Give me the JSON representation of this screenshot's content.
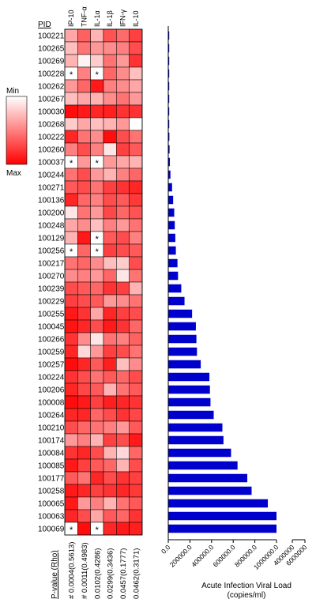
{
  "chart_data": [
    {
      "type": "heatmap",
      "row_header": "PID",
      "columns": [
        "IP-10",
        "TNF-α",
        "IL-1α",
        "IL-1β",
        "IFN-γ",
        "IL-10"
      ],
      "rows": [
        "100221",
        "100265",
        "100269",
        "100228",
        "100262",
        "100267",
        "100030",
        "100268",
        "100222",
        "100260",
        "100037",
        "100244",
        "100271",
        "100136",
        "100200",
        "100248",
        "100129",
        "100256",
        "100217",
        "100270",
        "100239",
        "100229",
        "100255",
        "100045",
        "100266",
        "100259",
        "100257",
        "100224",
        "100206",
        "100008",
        "100264",
        "100210",
        "100174",
        "100084",
        "100085",
        "100177",
        "100258",
        "100065",
        "100063",
        "100069"
      ],
      "values_0_1": [
        [
          0.35,
          0.62,
          0.3,
          0.68,
          0.58,
          0.75
        ],
        [
          0.25,
          0.55,
          0.4,
          0.45,
          0.5,
          0.7
        ],
        [
          0.3,
          0.05,
          0.2,
          0.55,
          0.4,
          0.8
        ],
        [
          0.0,
          0.5,
          0.0,
          0.6,
          0.45,
          0.25
        ],
        [
          0.4,
          0.6,
          0.9,
          0.5,
          0.45,
          0.35
        ],
        [
          0.25,
          0.35,
          0.3,
          0.45,
          0.55,
          0.4
        ],
        [
          0.95,
          0.9,
          0.85,
          0.88,
          0.8,
          0.8
        ],
        [
          0.2,
          0.35,
          0.25,
          0.3,
          0.4,
          0.0
        ],
        [
          0.85,
          0.55,
          0.45,
          0.95,
          0.7,
          0.55
        ],
        [
          0.5,
          0.7,
          0.5,
          0.1,
          0.75,
          0.65
        ],
        [
          0.0,
          0.4,
          0.0,
          0.4,
          0.35,
          0.3
        ],
        [
          0.55,
          0.7,
          0.4,
          0.3,
          0.5,
          0.6
        ],
        [
          0.65,
          0.7,
          0.55,
          0.75,
          0.8,
          0.85
        ],
        [
          0.85,
          0.6,
          0.5,
          0.7,
          0.65,
          0.78
        ],
        [
          0.1,
          0.55,
          0.4,
          0.72,
          0.6,
          0.68
        ],
        [
          0.35,
          0.45,
          0.25,
          0.5,
          0.4,
          0.55
        ],
        [
          0.3,
          0.9,
          0.0,
          0.65,
          0.7,
          0.5
        ],
        [
          0.0,
          0.6,
          0.0,
          0.75,
          0.7,
          0.65
        ],
        [
          0.55,
          0.6,
          0.45,
          0.25,
          0.2,
          0.7
        ],
        [
          0.45,
          0.5,
          0.4,
          0.6,
          0.1,
          0.55
        ],
        [
          0.7,
          0.65,
          0.6,
          0.8,
          0.75,
          0.3
        ],
        [
          0.75,
          0.7,
          0.65,
          0.4,
          0.45,
          0.55
        ],
        [
          0.9,
          0.8,
          0.35,
          0.85,
          0.75,
          0.7
        ],
        [
          0.92,
          0.85,
          0.7,
          0.9,
          0.8,
          0.6
        ],
        [
          0.8,
          0.45,
          0.1,
          0.55,
          0.5,
          0.62
        ],
        [
          0.85,
          0.15,
          0.4,
          0.75,
          0.7,
          0.55
        ],
        [
          0.95,
          0.85,
          0.65,
          0.88,
          0.25,
          0.45
        ],
        [
          0.8,
          0.7,
          0.55,
          0.65,
          0.6,
          0.7
        ],
        [
          0.85,
          0.72,
          0.65,
          0.3,
          0.55,
          0.65
        ],
        [
          0.95,
          0.9,
          0.75,
          0.88,
          0.85,
          0.8
        ],
        [
          0.85,
          0.85,
          0.6,
          0.7,
          0.8,
          0.72
        ],
        [
          0.7,
          0.6,
          0.55,
          0.5,
          0.4,
          0.65
        ],
        [
          0.4,
          0.5,
          0.3,
          0.75,
          0.7,
          0.9
        ],
        [
          0.8,
          0.85,
          0.7,
          0.3,
          0.15,
          0.6
        ],
        [
          0.9,
          0.75,
          0.65,
          0.6,
          0.3,
          0.7
        ],
        [
          0.65,
          0.55,
          0.85,
          0.7,
          0.8,
          0.75
        ],
        [
          0.9,
          0.85,
          0.75,
          0.8,
          0.85,
          0.78
        ],
        [
          0.9,
          0.4,
          0.5,
          0.3,
          0.55,
          0.65
        ],
        [
          0.85,
          0.7,
          0.35,
          0.65,
          0.6,
          0.8
        ],
        [
          0.0,
          0.95,
          0.0,
          0.85,
          0.9,
          0.88
        ]
      ],
      "missing_marker": "*",
      "legend_min": "Min",
      "legend_max": "Max",
      "pvalue_title": "P-value (Rho)",
      "pvalues": [
        "# 0.0004(0.5613)",
        "# 0.0011(0.4983)",
        "0.0102(0.4286)",
        "0.0299(0.3436)",
        "0.0457(0.1777)",
        "0.0462(0.3171)"
      ]
    },
    {
      "type": "bar",
      "orientation": "horizontal",
      "categories": [
        "100221",
        "100265",
        "100269",
        "100228",
        "100262",
        "100267",
        "100030",
        "100268",
        "100222",
        "100260",
        "100037",
        "100244",
        "100271",
        "100136",
        "100200",
        "100248",
        "100129",
        "100256",
        "100217",
        "100270",
        "100239",
        "100229",
        "100255",
        "100045",
        "100266",
        "100259",
        "100257",
        "100224",
        "100206",
        "100008",
        "100264",
        "100210",
        "100174",
        "100084",
        "100085",
        "100177",
        "100258",
        "100065",
        "100063",
        "100069"
      ],
      "values": [
        0,
        0,
        0,
        0,
        2000,
        3000,
        5000,
        8000,
        10000,
        12000,
        15000,
        20000,
        35000,
        45000,
        55000,
        60000,
        65000,
        70000,
        85000,
        90000,
        120000,
        150000,
        220000,
        255000,
        260000,
        265000,
        300000,
        380000,
        385000,
        390000,
        420000,
        500000,
        510000,
        580000,
        640000,
        730000,
        770000,
        920000,
        1030000,
        3500000
      ],
      "color": "#0000cc",
      "xlabel": "Acute Infection Viral Load",
      "xlabel_unit": "(copies/ml)",
      "ticks": [
        "0.0",
        "200000.0",
        "400000.0",
        "600000.0",
        "800000.0",
        "1000000.0",
        "4000000",
        "6000000"
      ],
      "axis_break": [
        1000000,
        4000000
      ],
      "xlim_segment1": [
        0,
        1000000
      ],
      "xlim_segment2": [
        4000000,
        6000000
      ]
    }
  ]
}
